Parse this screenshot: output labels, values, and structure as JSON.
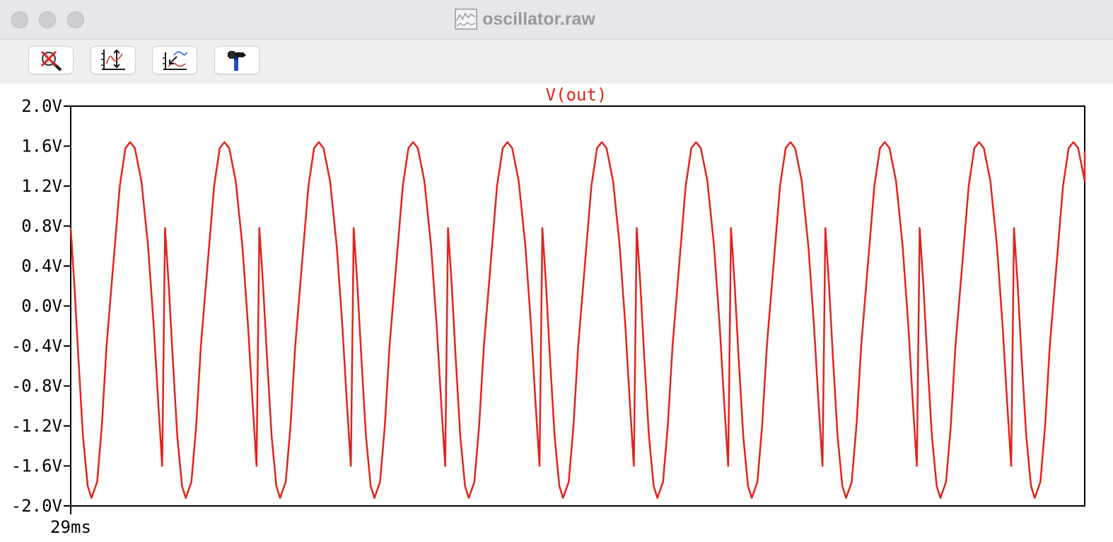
{
  "window": {
    "title": "oscillator.raw",
    "title_icon": "waveform-document-icon"
  },
  "toolbar": {
    "buttons": [
      {
        "name": "zoom-cancel",
        "icon": "magnifier-cancel-icon"
      },
      {
        "name": "autorange-y",
        "icon": "autorange-vertical-icon"
      },
      {
        "name": "zoom-to-fit",
        "icon": "zoom-fit-icon"
      },
      {
        "name": "settings",
        "icon": "hammer-icon"
      }
    ]
  },
  "chart_data": {
    "type": "line",
    "title": "V(out)",
    "series": [
      {
        "name": "V(out)",
        "color": "#e0241b",
        "period": 1,
        "x_start": 0,
        "x_end": 10.75,
        "sample_points": [
          [
            0.0,
            0.78
          ],
          [
            0.04,
            0.2
          ],
          [
            0.08,
            -0.5
          ],
          [
            0.13,
            -1.3
          ],
          [
            0.18,
            -1.8
          ],
          [
            0.22,
            -1.92
          ],
          [
            0.28,
            -1.76
          ],
          [
            0.33,
            -1.2
          ],
          [
            0.38,
            -0.4
          ],
          [
            0.45,
            0.4
          ],
          [
            0.52,
            1.2
          ],
          [
            0.58,
            1.58
          ],
          [
            0.63,
            1.64
          ],
          [
            0.68,
            1.58
          ],
          [
            0.75,
            1.25
          ],
          [
            0.82,
            0.6
          ],
          [
            0.88,
            -0.2
          ],
          [
            0.93,
            -1.0
          ],
          [
            0.97,
            -1.6
          ]
        ]
      }
    ],
    "ylim": [
      -2.0,
      2.0
    ],
    "yticks": [
      "2.0V",
      "1.6V",
      "1.2V",
      "0.8V",
      "0.4V",
      "0.0V",
      "-0.4V",
      "-0.8V",
      "-1.2V",
      "-1.6V",
      "-2.0V"
    ],
    "xticks": [
      "29ms"
    ],
    "grid": false,
    "line_color": "#e0241b"
  }
}
